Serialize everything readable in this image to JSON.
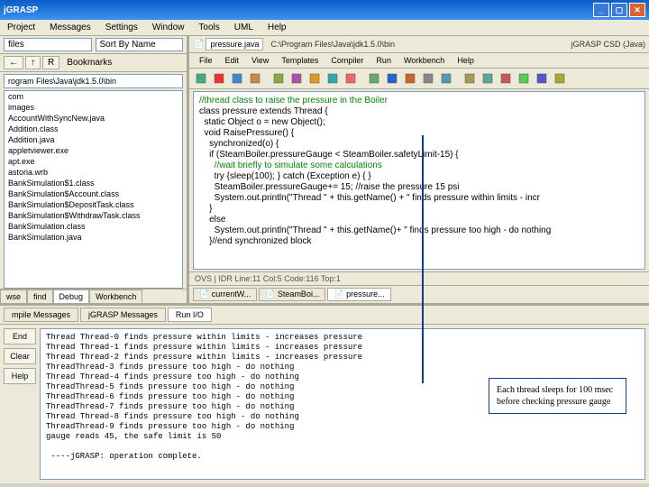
{
  "window": {
    "title": "jGRASP",
    "buttons": [
      "_",
      "▢",
      "✕"
    ]
  },
  "appMenu": [
    "Project",
    "Messages",
    "Settings",
    "Window",
    "Tools",
    "UML",
    "Help"
  ],
  "left": {
    "dropdown": "files",
    "sort": "Sort By Name",
    "nav": {
      "back": "←",
      "fwd": "↑",
      "refresh": "R"
    },
    "bookmarks": "Bookmarks",
    "path": "rogram Files\\Java\\jdk1.5.0\\bin",
    "files": [
      "com",
      "images",
      "AccountWithSyncNew.java",
      "Addition.class",
      "Addition.java",
      "appletviewer.exe",
      "apt.exe",
      "astoria.wrb",
      "BankSimulation$1.class",
      "BankSimulation$Account.class",
      "BankSimulation$DepositTask.class",
      "BankSimulation$WithdrawTask.class",
      "BankSimulation.class",
      "BankSimulation.java"
    ],
    "tabs": [
      "wse",
      "find",
      "Debug",
      "Workbench"
    ]
  },
  "editor": {
    "tab": "pressure.java",
    "path": "C:\\Program Files\\Java\\jdk1.5.0\\bin",
    "mode": "jGRASP CSD (Java)",
    "menu": [
      "File",
      "Edit",
      "View",
      "Templates",
      "Compiler",
      "Run",
      "Workbench",
      "Help"
    ],
    "tbColors": [
      "#4a8",
      "#e33",
      "#48c",
      "#c84",
      "#8a4",
      "#a5a",
      "#d92",
      "#3aa",
      "#e66",
      "#6a6",
      "#26c",
      "#c62",
      "#888",
      "#59a",
      "#a95",
      "#5a9",
      "#c55",
      "#5c5",
      "#55c",
      "#aa3"
    ],
    "code": [
      {
        "c": "cm",
        "t": "//thread class to raise the pressure in the Boiler"
      },
      {
        "c": "",
        "t": "class pressure extends Thread {"
      },
      {
        "c": "",
        "t": "  static Object o = new Object();"
      },
      {
        "c": "",
        "t": "  void RaisePressure() {"
      },
      {
        "c": "",
        "t": "    synchronized(o) {"
      },
      {
        "c": "",
        "t": "    if (SteamBoiler.pressureGauge < SteamBoiler.safetyLimit-15) {"
      },
      {
        "c": "cm",
        "t": "      //wait briefly to simulate some calculations"
      },
      {
        "c": "",
        "t": "      try {sleep(100); } catch (Exception e) { }"
      },
      {
        "c": "",
        "t": "      SteamBoiler.pressureGauge+= 15; //raise the pressure 15 psi"
      },
      {
        "c": "",
        "t": "      System.out.println(\"Thread \" + this.getName() + \" finds pressure within limits - incr"
      },
      {
        "c": "",
        "t": "    }"
      },
      {
        "c": "",
        "t": "    else"
      },
      {
        "c": "",
        "t": "      System.out.println(\"Thread \" + this.getName()+ \" finds pressure too high - do nothing"
      },
      {
        "c": "",
        "t": "    }//end synchronized block"
      }
    ],
    "status": "OVS | IDR  Line:11   Col:5   Code:116  Top:1",
    "bottomTabs": [
      "currentW...",
      "SteamBoi...",
      "pressure..."
    ]
  },
  "bottom": {
    "tabs": [
      "mpile Messages",
      "jGRASP Messages",
      "Run I/O"
    ],
    "buttons": [
      "End",
      "Clear",
      "Help"
    ],
    "console": [
      "Thread Thread-0 finds pressure within limits - increases pressure",
      "Thread Thread-1 finds pressure within limits - increases pressure",
      "Thread Thread-2 finds pressure within limits - increases pressure",
      "ThreadThread-3 finds pressure too high - do nothing",
      "Thread Thread-4 finds pressure too high - do nothing",
      "ThreadThread-5 finds pressure too high - do nothing",
      "ThreadThread-6 finds pressure too high - do nothing",
      "ThreadThread-7 finds pressure too high - do nothing",
      "Thread Thread-8 finds pressure too high - do nothing",
      "ThreadThread-9 finds pressure too high - do nothing",
      "gauge reads 45, the safe limit is 50",
      "",
      " ----jGRASP: operation complete."
    ]
  },
  "annotation": "Each thread sleeps for 100 msec before checking pressure gauge"
}
